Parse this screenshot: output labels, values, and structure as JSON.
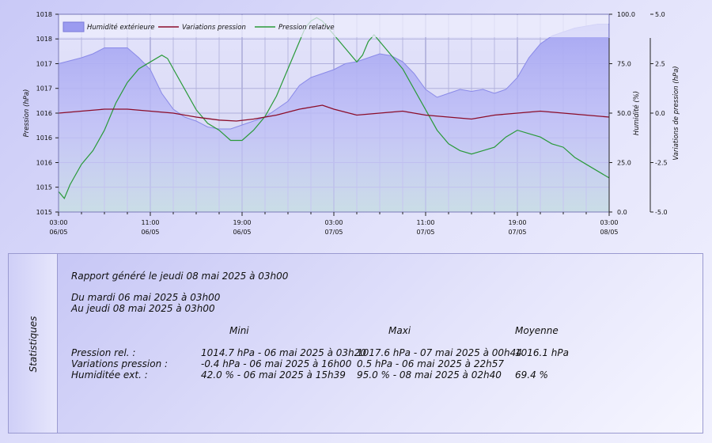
{
  "chart_data": {
    "type": "line",
    "legend_position": "top-left",
    "legend": [
      {
        "name": "Humidité extérieure",
        "color": "#9b9bf0",
        "kind": "area"
      },
      {
        "name": "Variations pression",
        "color": "#8b0d2a",
        "kind": "line"
      },
      {
        "name": "Pression relative",
        "color": "#2a9a3a",
        "kind": "line"
      }
    ],
    "y_left": {
      "label": "Pression (hPa)",
      "range": [
        1014.7,
        1017.6
      ],
      "tick_values": [
        1014.7,
        1015.064,
        1015.425,
        1015.788,
        1016.15,
        1016.513,
        1016.875,
        1017.238,
        1017.6
      ],
      "tick_labels": [
        "1015",
        "1015",
        "1016",
        "1016",
        "1016",
        "1017",
        "1017",
        "1018",
        "1018"
      ]
    },
    "y_right1": {
      "label": "Humidité (%)",
      "range": [
        0,
        100
      ],
      "tick_values": [
        0,
        25,
        50,
        75,
        100
      ],
      "tick_labels": [
        "0.0",
        "25.0",
        "50.0",
        "75.0",
        "100.0"
      ]
    },
    "y_right2": {
      "label": "Variations de pression (hPa)",
      "range": [
        -5,
        5
      ],
      "tick_values": [
        -5,
        -2.5,
        0,
        2.5,
        5
      ],
      "tick_labels": [
        "-5.0",
        "-2.5",
        "0.0",
        "2.5",
        "5.0"
      ]
    },
    "x": {
      "range_hours": [
        0,
        48
      ],
      "major_hours": [
        0,
        8,
        16,
        24,
        32,
        40,
        48
      ],
      "tick_labels": [
        [
          "03:00",
          "06/05"
        ],
        [
          "11:00",
          "06/05"
        ],
        [
          "19:00",
          "06/05"
        ],
        [
          "03:00",
          "07/05"
        ],
        [
          "11:00",
          "07/05"
        ],
        [
          "19:00",
          "07/05"
        ],
        [
          "03:00",
          "08/05"
        ]
      ],
      "minor_step_hours": 2
    },
    "grid": true,
    "series": [
      {
        "name": "Pression relative",
        "axis": "left",
        "color": "#2a9a3a",
        "points": [
          [
            0,
            1015.0
          ],
          [
            0.5,
            1014.9
          ],
          [
            1,
            1015.1
          ],
          [
            2,
            1015.4
          ],
          [
            3,
            1015.6
          ],
          [
            4,
            1015.9
          ],
          [
            5,
            1016.3
          ],
          [
            6,
            1016.6
          ],
          [
            7,
            1016.8
          ],
          [
            8,
            1016.9
          ],
          [
            9,
            1017.0
          ],
          [
            9.5,
            1016.95
          ],
          [
            10,
            1016.8
          ],
          [
            11,
            1016.5
          ],
          [
            12,
            1016.2
          ],
          [
            13,
            1016.0
          ],
          [
            14,
            1015.9
          ],
          [
            15,
            1015.75
          ],
          [
            16,
            1015.75
          ],
          [
            17,
            1015.9
          ],
          [
            18,
            1016.1
          ],
          [
            19,
            1016.4
          ],
          [
            20,
            1016.8
          ],
          [
            21,
            1017.2
          ],
          [
            21.5,
            1017.4
          ],
          [
            22,
            1017.5
          ],
          [
            22.5,
            1017.55
          ],
          [
            23,
            1017.5
          ],
          [
            24,
            1017.3
          ],
          [
            25,
            1017.1
          ],
          [
            26,
            1016.9
          ],
          [
            26.5,
            1017.0
          ],
          [
            27,
            1017.2
          ],
          [
            27.5,
            1017.3
          ],
          [
            28,
            1017.2
          ],
          [
            29,
            1017.0
          ],
          [
            30,
            1016.8
          ],
          [
            31,
            1016.5
          ],
          [
            32,
            1016.2
          ],
          [
            33,
            1015.9
          ],
          [
            34,
            1015.7
          ],
          [
            35,
            1015.6
          ],
          [
            36,
            1015.55
          ],
          [
            37,
            1015.6
          ],
          [
            38,
            1015.65
          ],
          [
            39,
            1015.8
          ],
          [
            40,
            1015.9
          ],
          [
            41,
            1015.85
          ],
          [
            42,
            1015.8
          ],
          [
            43,
            1015.7
          ],
          [
            44,
            1015.65
          ],
          [
            45,
            1015.5
          ],
          [
            46,
            1015.4
          ],
          [
            47,
            1015.3
          ],
          [
            48,
            1015.2
          ]
        ]
      },
      {
        "name": "Variations pression",
        "axis": "right2",
        "color": "#8b0d2a",
        "points": [
          [
            0,
            0.0
          ],
          [
            2,
            0.1
          ],
          [
            4,
            0.2
          ],
          [
            6,
            0.2
          ],
          [
            8,
            0.1
          ],
          [
            10,
            0.0
          ],
          [
            12,
            -0.2
          ],
          [
            14,
            -0.35
          ],
          [
            15.5,
            -0.4
          ],
          [
            17,
            -0.3
          ],
          [
            19,
            -0.1
          ],
          [
            21,
            0.2
          ],
          [
            23,
            0.4
          ],
          [
            24,
            0.2
          ],
          [
            26,
            -0.1
          ],
          [
            28,
            0.0
          ],
          [
            30,
            0.1
          ],
          [
            32,
            -0.1
          ],
          [
            34,
            -0.2
          ],
          [
            36,
            -0.3
          ],
          [
            38,
            -0.1
          ],
          [
            40,
            0.0
          ],
          [
            42,
            0.1
          ],
          [
            44,
            0.0
          ],
          [
            46,
            -0.1
          ],
          [
            48,
            -0.2
          ]
        ]
      },
      {
        "name": "Humidité extérieure",
        "axis": "right1",
        "color": "#9b9bf0",
        "points": [
          [
            0,
            75
          ],
          [
            2,
            78
          ],
          [
            3,
            80
          ],
          [
            4,
            83
          ],
          [
            5,
            83
          ],
          [
            6,
            83
          ],
          [
            7,
            78
          ],
          [
            8,
            72
          ],
          [
            9,
            60
          ],
          [
            10,
            52
          ],
          [
            11,
            48
          ],
          [
            12,
            46
          ],
          [
            13,
            43
          ],
          [
            14,
            42
          ],
          [
            15,
            42
          ],
          [
            16,
            44
          ],
          [
            17,
            46
          ],
          [
            18,
            48
          ],
          [
            19,
            52
          ],
          [
            20,
            56
          ],
          [
            21,
            64
          ],
          [
            22,
            68
          ],
          [
            23,
            70
          ],
          [
            24,
            72
          ],
          [
            25,
            75
          ],
          [
            26,
            76
          ],
          [
            27,
            78
          ],
          [
            28,
            80
          ],
          [
            29,
            79
          ],
          [
            30,
            76
          ],
          [
            31,
            70
          ],
          [
            32,
            62
          ],
          [
            33,
            58
          ],
          [
            34,
            60
          ],
          [
            35,
            62
          ],
          [
            36,
            61
          ],
          [
            37,
            62
          ],
          [
            38,
            60
          ],
          [
            39,
            62
          ],
          [
            40,
            68
          ],
          [
            41,
            78
          ],
          [
            42,
            85
          ],
          [
            43,
            89
          ],
          [
            44,
            91
          ],
          [
            45,
            93
          ],
          [
            46,
            94
          ],
          [
            47,
            95
          ],
          [
            48,
            95
          ]
        ]
      }
    ]
  },
  "stats": {
    "side_label": "Statistiques",
    "report_line": "Rapport généré le jeudi 08 mai 2025 à 03h00",
    "from_line": "Du mardi 06 mai 2025 à 03h00",
    "to_line": "Au jeudi 08 mai 2025 à 03h00",
    "headers": {
      "min": "Mini",
      "max": "Maxi",
      "avg": "Moyenne"
    },
    "rows": [
      {
        "label": "Pression rel. :",
        "min": "1014.7 hPa - 06 mai 2025 à 03h20",
        "max": "1017.6 hPa - 07 mai 2025 à 00h44",
        "avg": "1016.1 hPa"
      },
      {
        "label": "Variations pression :",
        "min": "-0.4 hPa - 06 mai 2025 à 16h00",
        "max": "0.5 hPa - 06 mai 2025 à 22h57",
        "avg": ""
      },
      {
        "label": "Humiditée ext. :",
        "min": "42.0 % - 06 mai 2025 à 15h39",
        "max": "95.0 % - 08 mai 2025 à 02h40",
        "avg": "69.4 %"
      }
    ]
  }
}
